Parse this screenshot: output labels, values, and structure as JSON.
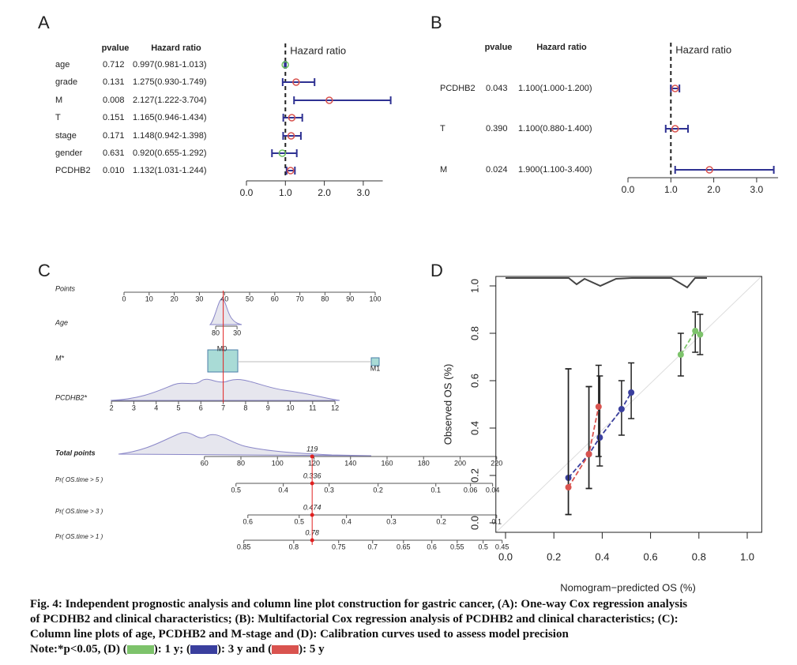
{
  "chart_data": [
    {
      "type": "forest",
      "panel": "A",
      "columns": [
        "pvalue",
        "Hazard ratio"
      ],
      "axis_title": "Hazard ratio",
      "rows": [
        {
          "name": "age",
          "pvalue": "0.712",
          "label": "0.997(0.981-1.013)",
          "hr": 0.997,
          "lower": 0.981,
          "upper": 1.013,
          "color": "#6cbf5e"
        },
        {
          "name": "grade",
          "pvalue": "0.131",
          "label": "1.275(0.930-1.749)",
          "hr": 1.275,
          "lower": 0.93,
          "upper": 1.749,
          "color": "#d9534f"
        },
        {
          "name": "M",
          "pvalue": "0.008",
          "label": "2.127(1.222-3.704)",
          "hr": 2.127,
          "lower": 1.222,
          "upper": 3.704,
          "color": "#d9534f"
        },
        {
          "name": "T",
          "pvalue": "0.151",
          "label": "1.165(0.946-1.434)",
          "hr": 1.165,
          "lower": 0.946,
          "upper": 1.434,
          "color": "#d9534f"
        },
        {
          "name": "stage",
          "pvalue": "0.171",
          "label": "1.148(0.942-1.398)",
          "hr": 1.148,
          "lower": 0.942,
          "upper": 1.398,
          "color": "#d9534f"
        },
        {
          "name": "gender",
          "pvalue": "0.631",
          "label": "0.920(0.655-1.292)",
          "hr": 0.92,
          "lower": 0.655,
          "upper": 1.292,
          "color": "#6cbf5e"
        },
        {
          "name": "PCDHB2",
          "pvalue": "0.010",
          "label": "1.132(1.031-1.244)",
          "hr": 1.132,
          "lower": 1.031,
          "upper": 1.244,
          "color": "#d9534f"
        }
      ],
      "xlim": [
        0,
        3.5
      ],
      "xticks": [
        {
          "value": 0,
          "label": "0.0"
        },
        {
          "value": 1,
          "label": "1.0"
        },
        {
          "value": 2,
          "label": "2.0"
        },
        {
          "value": 3,
          "label": "3.0"
        }
      ]
    },
    {
      "type": "forest",
      "panel": "B",
      "columns": [
        "pvalue",
        "Hazard ratio"
      ],
      "axis_title": "Hazard ratio",
      "rows": [
        {
          "name": "PCDHB2",
          "pvalue": "0.043",
          "label": "1.100(1.000-1.200)",
          "hr": 1.1,
          "lower": 1.0,
          "upper": 1.2,
          "color": "#d9534f"
        },
        {
          "name": "T",
          "pvalue": "0.390",
          "label": "1.100(0.880-1.400)",
          "hr": 1.1,
          "lower": 0.88,
          "upper": 1.4,
          "color": "#d9534f"
        },
        {
          "name": "M",
          "pvalue": "0.024",
          "label": "1.900(1.100-3.400)",
          "hr": 1.9,
          "lower": 1.1,
          "upper": 3.4,
          "color": "#d9534f"
        }
      ],
      "xlim": [
        0,
        3.5
      ],
      "xticks": [
        {
          "value": 0,
          "label": "0.0"
        },
        {
          "value": 1,
          "label": "1.0"
        },
        {
          "value": 2,
          "label": "2.0"
        },
        {
          "value": 3,
          "label": "3.0"
        }
      ]
    },
    {
      "type": "nomogram",
      "panel": "C",
      "scales": [
        {
          "name": "Points",
          "axis": "points",
          "ticks": [
            0,
            10,
            20,
            30,
            40,
            50,
            60,
            70,
            80,
            90,
            100
          ]
        },
        {
          "name": "Age",
          "axis": "points",
          "ticks": [
            {
              "value": 36.5,
              "label": "80"
            },
            {
              "value": 45,
              "label": "30"
            }
          ]
        },
        {
          "name": "M*",
          "axis": "points",
          "ticks": [
            {
              "value": 39,
              "label": "M0"
            },
            {
              "value": 100,
              "label": "M1"
            }
          ]
        },
        {
          "name": "PCDHB2*",
          "axis": "points",
          "ticks": [
            {
              "value": -5,
              "label": "2"
            },
            {
              "value": 3.9,
              "label": "3"
            },
            {
              "value": 12.8,
              "label": "4"
            },
            {
              "value": 21.7,
              "label": "5"
            },
            {
              "value": 30.6,
              "label": "6"
            },
            {
              "value": 39.5,
              "label": "7"
            },
            {
              "value": 48.4,
              "label": "8"
            },
            {
              "value": 57.3,
              "label": "9"
            },
            {
              "value": 66.2,
              "label": "10"
            },
            {
              "value": 75.1,
              "label": "11"
            },
            {
              "value": 84,
              "label": "12"
            }
          ]
        },
        {
          "name": "Total points",
          "axis": "total",
          "ticks": [
            60,
            80,
            100,
            120,
            140,
            160,
            180,
            200,
            220
          ],
          "marker": 119
        },
        {
          "name": "Pr( OS.time > 5 )",
          "axis": "total",
          "ticks": [
            {
              "value": 77.3,
              "label": "0.5"
            },
            {
              "value": 103.2,
              "label": "0.4"
            },
            {
              "value": 128.3,
              "label": "0.3"
            },
            {
              "value": 155.1,
              "label": "0.2"
            },
            {
              "value": 186.7,
              "label": "0.1"
            },
            {
              "value": 205.7,
              "label": "0.06"
            },
            {
              "value": 217.8,
              "label": "0.04"
            }
          ],
          "marker": 119,
          "marker_text": "0.336"
        },
        {
          "name": "Pr( OS.time > 3 )",
          "axis": "total",
          "ticks": [
            {
              "value": 83.8,
              "label": "0.6"
            },
            {
              "value": 111.9,
              "label": "0.5"
            },
            {
              "value": 137.8,
              "label": "0.4"
            },
            {
              "value": 162.4,
              "label": "0.3"
            },
            {
              "value": 189.7,
              "label": "0.2"
            },
            {
              "value": 220,
              "label": "0.1"
            }
          ],
          "marker": 119,
          "marker_text": "0.474"
        },
        {
          "name": "Pr( OS.time > 1 )",
          "axis": "total",
          "ticks": [
            {
              "value": 81.6,
              "label": "0.85"
            },
            {
              "value": 108.9,
              "label": "0.8"
            },
            {
              "value": 133.5,
              "label": "0.75"
            },
            {
              "value": 152.1,
              "label": "0.7"
            },
            {
              "value": 169,
              "label": "0.65"
            },
            {
              "value": 184.5,
              "label": "0.6"
            },
            {
              "value": 198.4,
              "label": "0.55"
            },
            {
              "value": 212.6,
              "label": "0.5"
            },
            {
              "value": 223,
              "label": "0.45"
            }
          ],
          "marker": 119,
          "marker_text": "0.78"
        }
      ]
    },
    {
      "type": "scatter",
      "panel": "D",
      "x_label": "Nomogram−predicted OS (%)",
      "y_label": "Observed OS (%)",
      "xlim": [
        -0.04,
        1.06
      ],
      "ylim": [
        -0.04,
        1.04
      ],
      "xticks": [
        {
          "value": 0,
          "label": "0.0"
        },
        {
          "value": 0.2,
          "label": "0.2"
        },
        {
          "value": 0.4,
          "label": "0.4"
        },
        {
          "value": 0.6,
          "label": "0.6"
        },
        {
          "value": 0.8,
          "label": "0.8"
        },
        {
          "value": 1,
          "label": "1.0"
        }
      ],
      "yticks": [
        {
          "value": 0,
          "label": "0.0"
        },
        {
          "value": 0.2,
          "label": "0.2"
        },
        {
          "value": 0.4,
          "label": "0.4"
        },
        {
          "value": 0.6,
          "label": "0.6"
        },
        {
          "value": 0.8,
          "label": "0.8"
        },
        {
          "value": 1,
          "label": "1.0"
        }
      ],
      "series": [
        {
          "name": "1 y",
          "color": "#7dc36b",
          "x": [
            0.725,
            0.785,
            0.805
          ],
          "values": [
            0.71,
            0.81,
            0.795
          ],
          "lower": [
            0.62,
            0.72,
            0.71
          ],
          "upper": [
            0.8,
            0.89,
            0.88
          ]
        },
        {
          "name": "3 y",
          "color": "#3a3f9e",
          "x": [
            0.26,
            0.345,
            0.39,
            0.48,
            0.52
          ],
          "values": [
            0.19,
            0.29,
            0.36,
            0.48,
            0.55
          ],
          "lower": [
            0.035,
            0.145,
            0.24,
            0.37,
            0.44
          ],
          "upper": [
            0.65,
            0.575,
            0.62,
            0.6,
            0.675
          ]
        },
        {
          "name": "5 y",
          "color": "#d9534f",
          "x": [
            0.26,
            0.345,
            0.385
          ],
          "values": [
            0.15,
            0.29,
            0.49
          ],
          "lower": [
            0.035,
            0.145,
            0.28
          ],
          "upper": [
            0.65,
            0.575,
            0.665
          ]
        }
      ]
    }
  ],
  "caption": {
    "lines": [
      "Fig. 4: Independent prognostic analysis and column line plot construction for gastric cancer, (A): One-way Cox regression analysis",
      "of PCDHB2 and clinical characteristics; (B): Multifactorial Cox regression analysis of PCDHB2 and clinical characteristics; (C):",
      "Column line plots of age, PCDHB2 and M-stage and (D): Calibration curves used to assess model precision"
    ],
    "note": [
      "Note:*p<0.05, (D) (",
      "): ",
      "; (",
      "): ",
      " and (",
      "): "
    ]
  }
}
